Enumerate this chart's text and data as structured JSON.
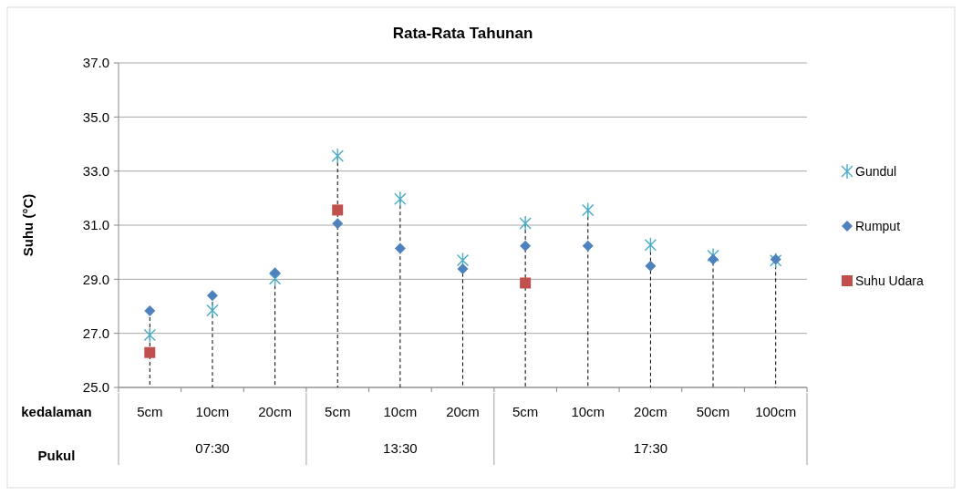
{
  "chart_data": {
    "type": "scatter",
    "title": "Rata-Rata Tahunan",
    "ylabel": "Suhu (°C)",
    "categories": [
      "5cm",
      "10cm",
      "20cm",
      "5cm",
      "10cm",
      "20cm",
      "5cm",
      "10cm",
      "20cm",
      "50cm",
      "100cm"
    ],
    "series": [
      {
        "name": "Gundul",
        "color": "#4bacc6",
        "marker": "cross",
        "values": [
          26.94,
          27.85,
          29.02,
          33.56,
          31.97,
          29.7,
          31.07,
          31.56,
          30.27,
          29.87,
          29.69
        ]
      },
      {
        "name": "Rumput",
        "color": "#4f81bd",
        "marker": "diamond",
        "values": [
          27.83,
          28.4,
          29.24,
          31.06,
          30.14,
          29.38,
          30.23,
          30.23,
          29.49,
          29.74,
          29.74
        ]
      },
      {
        "name": "Suhu Udara",
        "color": "#c0504d",
        "marker": "square",
        "values": [
          26.29,
          null,
          null,
          31.56,
          null,
          null,
          28.86,
          null,
          null,
          null,
          null
        ]
      }
    ],
    "ylim": [
      25,
      37
    ],
    "yticks": [
      {
        "value": 25,
        "label": "25.0"
      },
      {
        "value": 27,
        "label": "27.0"
      },
      {
        "value": 29,
        "label": "29.0"
      },
      {
        "value": 31,
        "label": "31.0"
      },
      {
        "value": 33,
        "label": "33.0"
      },
      {
        "value": 35,
        "label": "35.0"
      },
      {
        "value": 37,
        "label": "37.0"
      }
    ],
    "grid": "y",
    "legend": "right",
    "annotations": [
      "kedalaman",
      "Pukul",
      "07:30",
      "13:30",
      "17:30"
    ]
  }
}
